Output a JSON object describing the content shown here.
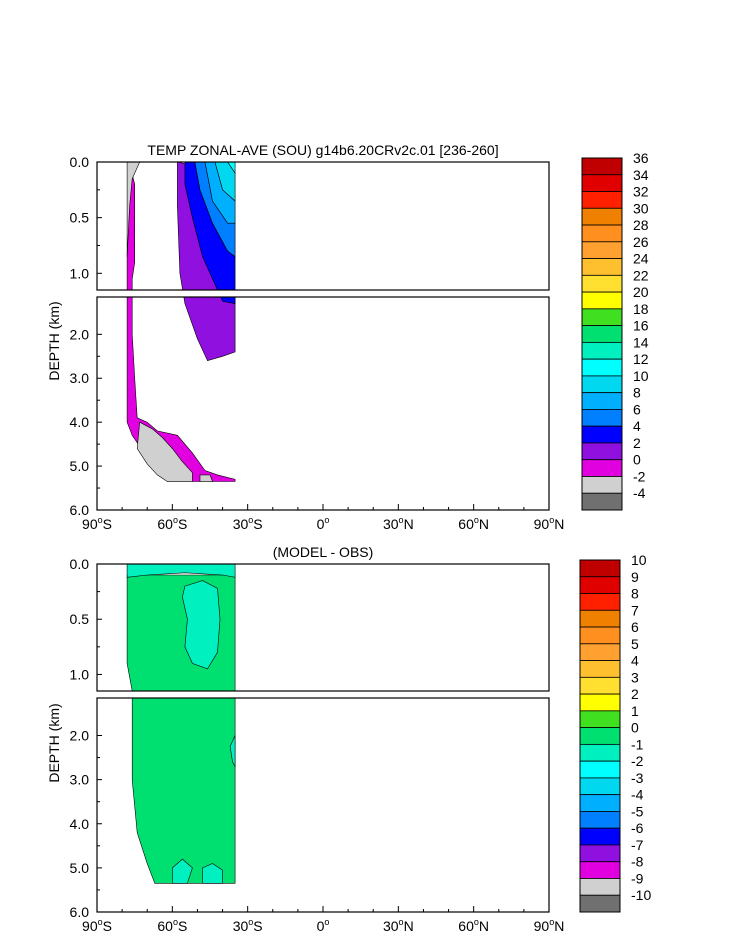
{
  "chart_data": [
    {
      "type": "heatmap",
      "title": "TEMP ZONAL-AVE (SOU) g14b6.20CRv2c.01 [236-260]",
      "ylabel": "DEPTH (km)",
      "xlim": [
        -90,
        90
      ],
      "ylim": [
        6.0,
        0.0
      ],
      "y_break_km": 1.15,
      "x_ticks": [
        {
          "v": -90,
          "n": "90",
          "h": "S"
        },
        {
          "v": -60,
          "n": "60",
          "h": "S"
        },
        {
          "v": -30,
          "n": "30",
          "h": "S"
        },
        {
          "v": 0,
          "n": "0",
          "h": ""
        },
        {
          "v": 30,
          "n": "30",
          "h": "N"
        },
        {
          "v": 60,
          "n": "60",
          "h": "N"
        },
        {
          "v": 90,
          "n": "90",
          "h": "N"
        }
      ],
      "y_ticks_upper": [
        {
          "v": 0.0,
          "l": "0.0"
        },
        {
          "v": 0.5,
          "l": "0.5"
        },
        {
          "v": 1.0,
          "l": "1.0"
        }
      ],
      "y_ticks_lower": [
        {
          "v": 2.0,
          "l": "2.0"
        },
        {
          "v": 3.0,
          "l": "3.0"
        },
        {
          "v": 4.0,
          "l": "4.0"
        },
        {
          "v": 5.0,
          "l": "5.0"
        },
        {
          "v": 6.0,
          "l": "6.0"
        }
      ],
      "colorbar": {
        "labels": [
          "36",
          "34",
          "32",
          "30",
          "28",
          "26",
          "24",
          "22",
          "20",
          "18",
          "16",
          "14",
          "12",
          "10",
          "8",
          "6",
          "4",
          "2",
          "0",
          "-2",
          "-4"
        ],
        "colors": [
          "#c00000",
          "#e00000",
          "#ff2000",
          "#f08000",
          "#ff9020",
          "#ffa030",
          "#ffc030",
          "#ffe030",
          "#ffff00",
          "#40e020",
          "#00e070",
          "#00f0c0",
          "#00ffff",
          "#00d8f0",
          "#00b0ff",
          "#0080ff",
          "#0000ff",
          "#9010e0",
          "#e000e0",
          "#d0d0d0",
          "#707070"
        ]
      },
      "regions": [
        {
          "value": 0.5,
          "color": "#e000e0",
          "pts": [
            [
              -77,
              0.02
            ],
            [
              -75,
              0.2
            ],
            [
              -75,
              0.9
            ],
            [
              -76,
              1.05
            ],
            [
              -76,
              1.15
            ],
            [
              -76,
              2.0
            ],
            [
              -75,
              3.0
            ],
            [
              -74,
              3.9
            ],
            [
              -70,
              4.0
            ],
            [
              -66,
              4.2
            ],
            [
              -58,
              4.3
            ],
            [
              -52,
              4.7
            ],
            [
              -47,
              5.1
            ],
            [
              -42,
              5.2
            ],
            [
              -35,
              5.3
            ],
            [
              -35,
              5.35
            ],
            [
              -62,
              5.35
            ],
            [
              -65,
              5.1
            ],
            [
              -70,
              4.8
            ],
            [
              -76,
              4.3
            ],
            [
              -78,
              4.0
            ],
            [
              -78,
              2.0
            ],
            [
              -78,
              1.15
            ],
            [
              -78,
              0.85
            ],
            [
              -77,
              0.2
            ]
          ]
        },
        {
          "value": -1.0,
          "color": "#d0d0d0",
          "pts": [
            [
              -78,
              0.0
            ],
            [
              -73,
              0.0
            ],
            [
              -76,
              0.15
            ],
            [
              -77,
              0.4
            ],
            [
              -78,
              0.85
            ]
          ]
        },
        {
          "value": -1.0,
          "color": "#d0d0d0",
          "pts": [
            [
              -73,
              4.0
            ],
            [
              -68,
              4.15
            ],
            [
              -64,
              4.35
            ],
            [
              -60,
              4.6
            ],
            [
              -56,
              4.9
            ],
            [
              -52,
              5.15
            ],
            [
              -52,
              5.35
            ],
            [
              -62,
              5.35
            ],
            [
              -66,
              5.2
            ],
            [
              -70,
              4.95
            ],
            [
              -74,
              4.6
            ]
          ]
        },
        {
          "value": -1.0,
          "color": "#d0d0d0",
          "pts": [
            [
              -49,
              5.2
            ],
            [
              -45,
              5.2
            ],
            [
              -44,
              5.35
            ],
            [
              -49,
              5.35
            ]
          ]
        },
        {
          "value": 3.0,
          "color": "#9010e0",
          "pts": [
            [
              -58,
              0.0
            ],
            [
              -54,
              0.02
            ],
            [
              -54,
              0.3
            ],
            [
              -50,
              0.6
            ],
            [
              -45,
              0.9
            ],
            [
              -38,
              1.05
            ],
            [
              -35,
              1.15
            ],
            [
              -35,
              2.4
            ],
            [
              -40,
              2.5
            ],
            [
              -46,
              2.6
            ],
            [
              -50,
              2.1
            ],
            [
              -55,
              1.3
            ],
            [
              -57,
              1.0
            ],
            [
              -58,
              0.4
            ]
          ]
        },
        {
          "value": 5.0,
          "color": "#0000ff",
          "pts": [
            [
              -55,
              0.0
            ],
            [
              -51,
              0.0
            ],
            [
              -49,
              0.25
            ],
            [
              -44,
              0.55
            ],
            [
              -38,
              0.8
            ],
            [
              -35,
              0.85
            ],
            [
              -35,
              1.3
            ],
            [
              -40,
              1.25
            ],
            [
              -48,
              0.85
            ],
            [
              -52,
              0.5
            ],
            [
              -55,
              0.2
            ]
          ]
        },
        {
          "value": 7.0,
          "color": "#0080ff",
          "pts": [
            [
              -51,
              0.0
            ],
            [
              -47,
              0.0
            ],
            [
              -44,
              0.35
            ],
            [
              -38,
              0.55
            ],
            [
              -35,
              0.55
            ],
            [
              -35,
              0.85
            ],
            [
              -38,
              0.8
            ],
            [
              -44,
              0.55
            ],
            [
              -49,
              0.25
            ]
          ]
        },
        {
          "value": 9.0,
          "color": "#00b0ff",
          "pts": [
            [
              -47,
              0.0
            ],
            [
              -43,
              0.0
            ],
            [
              -40,
              0.25
            ],
            [
              -35,
              0.35
            ],
            [
              -35,
              0.55
            ],
            [
              -38,
              0.55
            ],
            [
              -44,
              0.35
            ]
          ]
        },
        {
          "value": 11.0,
          "color": "#00d8f0",
          "pts": [
            [
              -43,
              0.0
            ],
            [
              -38,
              0.0
            ],
            [
              -35,
              0.1
            ],
            [
              -35,
              0.35
            ],
            [
              -40,
              0.25
            ]
          ]
        },
        {
          "value": 13.0,
          "color": "#00ffff",
          "pts": [
            [
              -38,
              0.0
            ],
            [
              -35,
              0.0
            ],
            [
              -35,
              0.1
            ]
          ]
        }
      ]
    },
    {
      "type": "heatmap",
      "title": "(MODEL - OBS)",
      "ylabel": "DEPTH (km)",
      "xlim": [
        -90,
        90
      ],
      "ylim": [
        6.0,
        0.0
      ],
      "y_break_km": 1.15,
      "x_ticks": [
        {
          "v": -90,
          "n": "90",
          "h": "S"
        },
        {
          "v": -60,
          "n": "60",
          "h": "S"
        },
        {
          "v": -30,
          "n": "30",
          "h": "S"
        },
        {
          "v": 0,
          "n": "0",
          "h": ""
        },
        {
          "v": 30,
          "n": "30",
          "h": "N"
        },
        {
          "v": 60,
          "n": "60",
          "h": "N"
        },
        {
          "v": 90,
          "n": "90",
          "h": "N"
        }
      ],
      "y_ticks_upper": [
        {
          "v": 0.0,
          "l": "0.0"
        },
        {
          "v": 0.5,
          "l": "0.5"
        },
        {
          "v": 1.0,
          "l": "1.0"
        }
      ],
      "y_ticks_lower": [
        {
          "v": 2.0,
          "l": "2.0"
        },
        {
          "v": 3.0,
          "l": "3.0"
        },
        {
          "v": 4.0,
          "l": "4.0"
        },
        {
          "v": 5.0,
          "l": "5.0"
        },
        {
          "v": 6.0,
          "l": "6.0"
        }
      ],
      "colorbar": {
        "labels": [
          "10",
          "9",
          "8",
          "7",
          "6",
          "5",
          "4",
          "3",
          "2",
          "1",
          "0",
          "-1",
          "-2",
          "-3",
          "-4",
          "-5",
          "-6",
          "-7",
          "-8",
          "-9",
          "-10"
        ],
        "colors": [
          "#c00000",
          "#e00000",
          "#ff2000",
          "#f08000",
          "#ff9020",
          "#ffa030",
          "#ffc030",
          "#ffe030",
          "#ffff00",
          "#40e020",
          "#00e070",
          "#00f0c0",
          "#00ffff",
          "#00d8f0",
          "#00b0ff",
          "#0080ff",
          "#0000ff",
          "#9010e0",
          "#e000e0",
          "#d0d0d0",
          "#707070"
        ]
      },
      "regions": [
        {
          "value": 0.5,
          "color": "#00e070",
          "pts": [
            [
              -78,
              0.1
            ],
            [
              -35,
              0.1
            ],
            [
              -35,
              5.35
            ],
            [
              -67,
              5.35
            ],
            [
              -70,
              4.9
            ],
            [
              -74,
              4.2
            ],
            [
              -76,
              3.0
            ],
            [
              -76,
              1.15
            ],
            [
              -78,
              0.9
            ]
          ]
        },
        {
          "value": -0.5,
          "color": "#00f0c0",
          "pts": [
            [
              -78,
              0.0
            ],
            [
              -35,
              0.0
            ],
            [
              -35,
              0.12
            ],
            [
              -40,
              0.1
            ],
            [
              -55,
              0.08
            ],
            [
              -70,
              0.1
            ],
            [
              -78,
              0.12
            ]
          ]
        },
        {
          "value": -0.5,
          "color": "#00f0c0",
          "pts": [
            [
              -55,
              0.2
            ],
            [
              -48,
              0.15
            ],
            [
              -42,
              0.22
            ],
            [
              -41,
              0.5
            ],
            [
              -42,
              0.8
            ],
            [
              -46,
              0.95
            ],
            [
              -52,
              0.9
            ],
            [
              -55,
              0.75
            ],
            [
              -54,
              0.5
            ],
            [
              -56,
              0.3
            ]
          ]
        },
        {
          "value": -0.5,
          "color": "#00f0c0",
          "pts": [
            [
              -35,
              2.0
            ],
            [
              -37,
              2.25
            ],
            [
              -36,
              2.6
            ],
            [
              -35,
              2.7
            ]
          ]
        },
        {
          "value": -0.5,
          "color": "#00f0c0",
          "pts": [
            [
              -60,
              5.0
            ],
            [
              -56,
              4.8
            ],
            [
              -52,
              5.0
            ],
            [
              -54,
              5.35
            ],
            [
              -60,
              5.35
            ]
          ]
        },
        {
          "value": -0.5,
          "color": "#00f0c0",
          "pts": [
            [
              -48,
              5.0
            ],
            [
              -44,
              4.9
            ],
            [
              -40,
              5.05
            ],
            [
              -40,
              5.35
            ],
            [
              -48,
              5.35
            ]
          ]
        }
      ]
    }
  ]
}
